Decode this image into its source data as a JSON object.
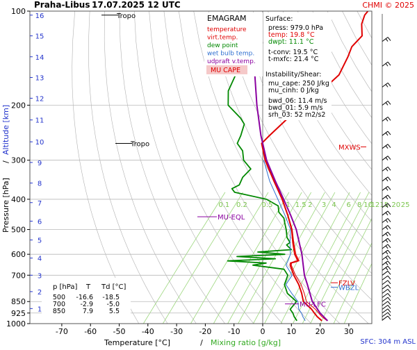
{
  "header": {
    "station": "Praha-Libus",
    "datetime": "17.07.2025 12 UTC",
    "copyright": "CHMI © 2025"
  },
  "legend_box": {
    "title": "EMAGRAM",
    "items": [
      {
        "label": "temperature",
        "color": "#e00000"
      },
      {
        "label": "virt.temp.",
        "color": "#e00000"
      },
      {
        "label": "dew point",
        "color": "#008800"
      },
      {
        "label": "wet bulb temp.",
        "color": "#2f6fd0"
      },
      {
        "label": "udpraft v.temp.",
        "color": "#8a00a0"
      }
    ],
    "mu_cape_label": "MU CAPE"
  },
  "info_panel": {
    "surface_title": "Surface:",
    "press": "press: 979.0 hPa",
    "temp": "temp: 19.8 °C",
    "dwpt": "dwpt: 11.1 °C",
    "tconv": "t-conv: 19.5 °C",
    "tmxfc": "t-mxfc: 21.4 °C",
    "instability_title": "Instability/Shear:",
    "mu_cape": "mu_cape: 250 J/kg",
    "mu_cinh": "mu_cinh: 0 J/kg",
    "bwd_06": "bwd_06: 11.4 m/s",
    "bwd_01": "bwd_01: 5.9 m/s",
    "srh_03": "srh_03: 52 m2/s2"
  },
  "level_table": {
    "headers": [
      "p [hPa]",
      "T",
      "Td [°C]"
    ],
    "rows": [
      [
        "500",
        "-16.6",
        "-18.5"
      ],
      [
        "700",
        "-2.9",
        "-5.0"
      ],
      [
        "850",
        "7.9",
        "5.5"
      ]
    ]
  },
  "annotations": {
    "tropo_upper": "Tropo",
    "tropo_lower": "Tropo",
    "mu_eql": "MU-EQL",
    "mu_lfc": "MU-LFC",
    "mxws": "MXWS",
    "fzlv": "FZLV",
    "wbzl": "WBZL",
    "sfc": "SFC: 304 m ASL"
  },
  "mixing_ratio_labels": [
    "0.1",
    "0.2",
    "0.5",
    "1",
    "1.5",
    "2",
    "3",
    "4",
    "6",
    "8",
    "10",
    "12",
    "15",
    "20",
    "25"
  ],
  "colors": {
    "temperature": "#e00000",
    "dewpoint": "#008800",
    "wetbulb": "#2f6fd0",
    "parcel": "#8a00a0",
    "mixing": "#9ad67a",
    "dry_adiabat": "#b0b0b0",
    "grid": "#b8b8b8",
    "axis_blue": "#2233cc",
    "cape_fill": "#f5c9c9",
    "mu_cape_bg": "#f5c9c9"
  },
  "chart_data": {
    "type": "line",
    "title": "Praha-Libus 17.07.2025 12 UTC",
    "xlabel": "Temperature [°C]",
    "xlabel2": "Mixing ratio [g/kg]",
    "ylabel": "Pressure [hPa]",
    "ylabel2": "Altitude [km]",
    "ylabel_sep": "/",
    "xlim": [
      -80,
      35
    ],
    "ylim": [
      1000,
      100
    ],
    "y_scale": "log",
    "x_ticks": [
      -70,
      -60,
      -50,
      -40,
      -30,
      -20,
      -10,
      0,
      10,
      20,
      30
    ],
    "p_ticks": [
      1000,
      925,
      850,
      700,
      600,
      500,
      400,
      300,
      200,
      100
    ],
    "km_ticks": [
      "1",
      "2",
      "3",
      "4",
      "5",
      "6",
      "7",
      "8",
      "9",
      "10",
      "11",
      "12",
      "13",
      "14",
      "15",
      "16"
    ],
    "km_tick_pressures": [
      895,
      790,
      700,
      617,
      540,
      470,
      410,
      355,
      305,
      262,
      223,
      190,
      163,
      140,
      120,
      103
    ],
    "grid": true,
    "series": [
      {
        "name": "temperature",
        "p": [
          979,
          950,
          925,
          900,
          850,
          800,
          750,
          700,
          650,
          640,
          630,
          600,
          550,
          500,
          450,
          400,
          350,
          300,
          265,
          250,
          220,
          200,
          180,
          160,
          140,
          130,
          120,
          110,
          103,
          100
        ],
        "t": [
          19.8,
          17.0,
          15.0,
          13.0,
          7.9,
          5.0,
          1.5,
          -2.9,
          -7.0,
          -7.5,
          -5.5,
          -8.5,
          -12.5,
          -16.6,
          -22.0,
          -28.5,
          -36.5,
          -45.5,
          -51.5,
          -51.0,
          -49.5,
          -46.0,
          -45.5,
          -44.0,
          -46.0,
          -47.5,
          -47.0,
          -50.5,
          -52.0,
          -52.0
        ]
      },
      {
        "name": "virt.temp.",
        "p": [
          979,
          950,
          925,
          900,
          850,
          800,
          750,
          700,
          650,
          640,
          630,
          600,
          550,
          500,
          450,
          400,
          350,
          300,
          265,
          250
        ],
        "t": [
          21.6,
          18.6,
          16.5,
          14.3,
          9.0,
          5.9,
          2.3,
          -2.3,
          -6.6,
          -7.1,
          -5.1,
          -8.1,
          -12.2,
          -16.4,
          -21.9,
          -28.4,
          -36.4,
          -45.4,
          -51.4,
          -50.9
        ]
      },
      {
        "name": "dew point",
        "p": [
          979,
          950,
          925,
          900,
          850,
          800,
          750,
          700,
          670,
          650,
          640,
          630,
          620,
          610,
          600,
          590,
          580,
          560,
          550,
          530,
          500,
          480,
          460,
          440,
          420,
          400,
          380,
          370,
          360,
          340,
          320,
          300,
          280,
          265,
          250,
          240,
          230,
          220,
          200,
          180,
          160,
          140,
          130
        ],
        "t": [
          11.1,
          9.0,
          7.5,
          5.5,
          5.5,
          0.0,
          -3.5,
          -5.0,
          -8.0,
          -20.0,
          -16.0,
          -30.0,
          -14.0,
          -28.0,
          -12.0,
          -22.0,
          -11.0,
          -14.0,
          -13.5,
          -16.0,
          -18.5,
          -20.5,
          -22.5,
          -26.0,
          -28.0,
          -34.0,
          -47.0,
          -49.0,
          -47.5,
          -48.5,
          -48.0,
          -53.0,
          -56.0,
          -60.0,
          -61.0,
          -62.0,
          -63.0,
          -66.0,
          -74.0,
          -78.0,
          -80.0,
          -80.0,
          -80.0
        ]
      },
      {
        "name": "wet bulb temp.",
        "p": [
          979,
          950,
          925,
          900,
          850,
          800,
          750,
          700,
          650,
          630,
          600,
          550,
          500,
          450,
          400,
          350,
          300
        ],
        "t": [
          14.0,
          12.0,
          10.5,
          8.5,
          6.0,
          1.5,
          -3.0,
          -3.5,
          -8.5,
          -9.0,
          -10.0,
          -13.5,
          -17.0,
          -23.0,
          -30.0,
          -38.0,
          -46.0
        ]
      },
      {
        "name": "udpraft v.temp.",
        "p": [
          979,
          925,
          850,
          750,
          700,
          600,
          500,
          450,
          400,
          350,
          300,
          250,
          200,
          150,
          130
        ],
        "t": [
          21.8,
          17.0,
          11.0,
          4.5,
          0.8,
          -6.0,
          -15.0,
          -21.0,
          -28.0,
          -36.0,
          -45.0,
          -54.0,
          -64.0,
          -76.0,
          -82.0
        ]
      }
    ]
  }
}
